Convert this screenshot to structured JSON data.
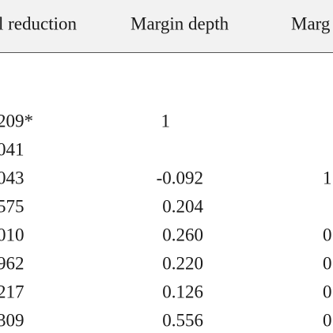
{
  "table": {
    "header": [
      "l reduction",
      "Margin depth",
      "Marg"
    ],
    "rows": [
      [
        "209*",
        "1",
        null
      ],
      [
        "041",
        null,
        null
      ],
      [
        "043",
        "-0.092",
        "1"
      ],
      [
        "575",
        "0.204",
        null
      ],
      [
        "010",
        "0.260",
        "0"
      ],
      [
        "962",
        "0.220",
        "0"
      ],
      [
        "217",
        "0.126",
        "0"
      ],
      [
        "309",
        "0.556",
        "0"
      ]
    ]
  }
}
